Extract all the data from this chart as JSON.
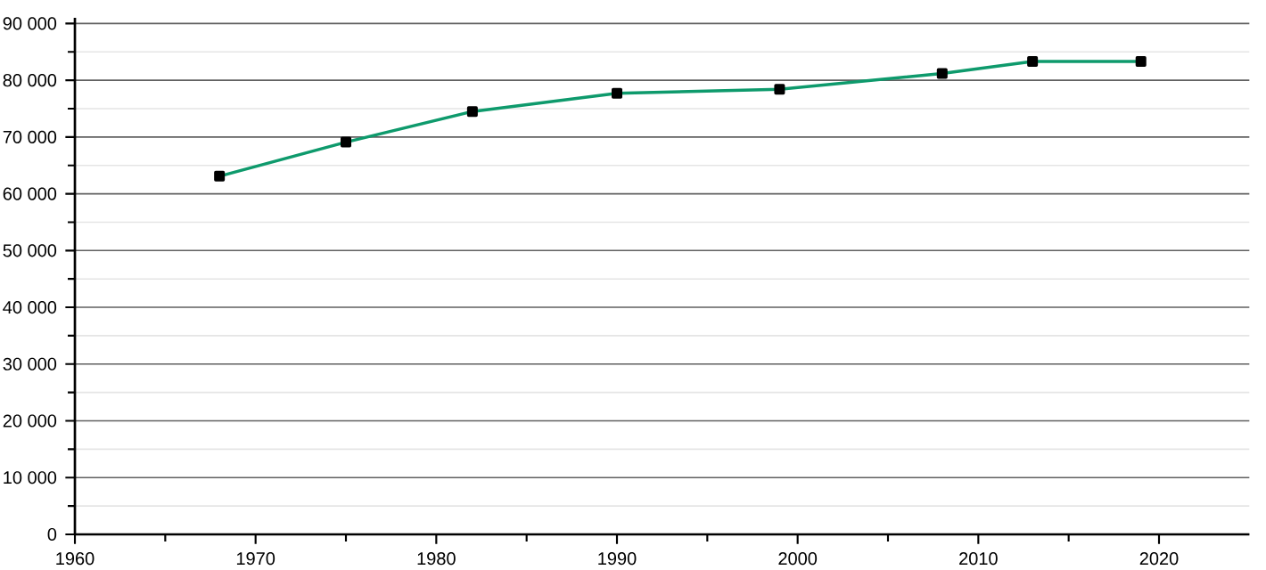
{
  "chart_data": {
    "type": "line",
    "x": [
      1968,
      1975,
      1982,
      1990,
      1999,
      2008,
      2013,
      2019
    ],
    "series": [
      {
        "color": "#0e9a6c",
        "values": [
          63100,
          69100,
          74500,
          77700,
          78400,
          81200,
          83300,
          83300
        ]
      }
    ],
    "xlim": [
      1960,
      2025
    ],
    "ylim": [
      0,
      91000
    ],
    "xticks": [
      1960,
      1970,
      1980,
      1990,
      2000,
      2010,
      2020
    ],
    "yticks": [
      0,
      {
        "value": 10000,
        "label": "10 000"
      },
      {
        "value": 20000,
        "label": "20 000"
      },
      {
        "value": 30000,
        "label": "30 000"
      },
      {
        "value": 40000,
        "label": "40 000"
      },
      {
        "value": 50000,
        "label": "50 000"
      },
      {
        "value": 60000,
        "label": "60 000"
      },
      {
        "value": 70000,
        "label": "70 000"
      },
      {
        "value": 80000,
        "label": "80 000"
      },
      {
        "value": 90000,
        "label": "90 000"
      }
    ],
    "grid": "y",
    "marker": "square",
    "line_style": "solid"
  }
}
